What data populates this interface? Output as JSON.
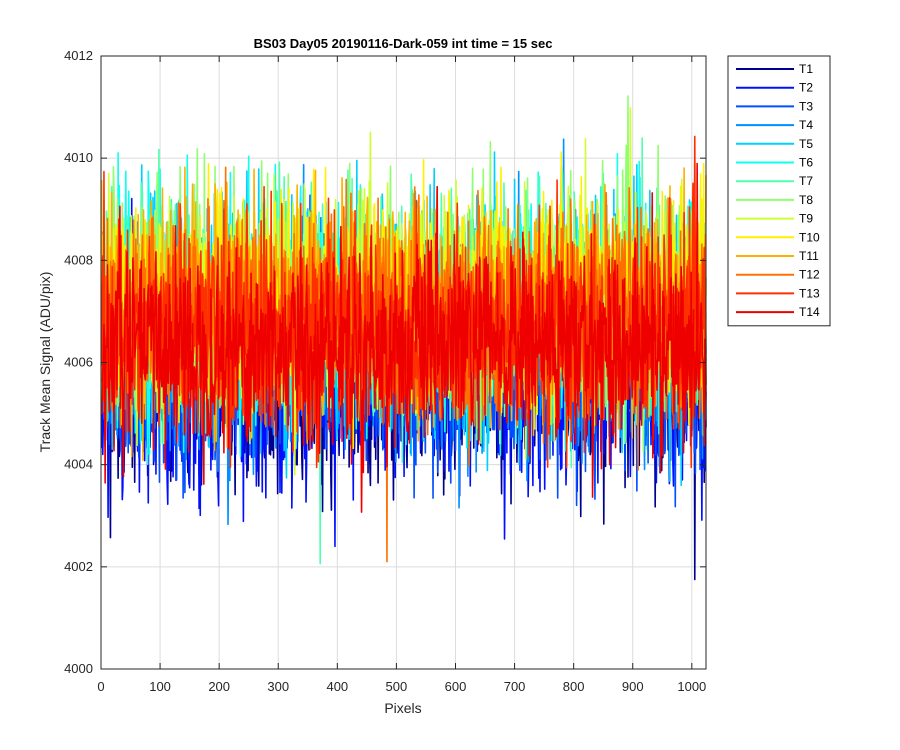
{
  "chart_data": {
    "type": "line",
    "title": "BS03 Day05 20190116-Dark-059 int time = 15 sec",
    "xlabel": "Pixels",
    "ylabel": "Track Mean Signal (ADU/pix)",
    "xlim": [
      0,
      1024
    ],
    "ylim": [
      4000,
      4012
    ],
    "xticks": [
      0,
      100,
      200,
      300,
      400,
      500,
      600,
      700,
      800,
      900,
      1000
    ],
    "yticks": [
      4000,
      4002,
      4004,
      4006,
      4008,
      4010,
      4012
    ],
    "grid": true,
    "legend_position": "outside-top-right",
    "x_points": 1024,
    "series": [
      {
        "name": "T1",
        "color": "#00008f",
        "mean": 4005.6,
        "spread": 1.05
      },
      {
        "name": "T2",
        "color": "#0010ff",
        "mean": 4005.7,
        "spread": 1.05
      },
      {
        "name": "T3",
        "color": "#0050ff",
        "mean": 4006.0,
        "spread": 1.0
      },
      {
        "name": "T4",
        "color": "#0090ff",
        "mean": 4006.4,
        "spread": 1.05
      },
      {
        "name": "T5",
        "color": "#00d0ff",
        "mean": 4006.8,
        "spread": 1.1
      },
      {
        "name": "T6",
        "color": "#10ffef",
        "mean": 4007.0,
        "spread": 1.1
      },
      {
        "name": "T7",
        "color": "#50ffaf",
        "mean": 4007.1,
        "spread": 1.05
      },
      {
        "name": "T8",
        "color": "#8fff70",
        "mean": 4007.2,
        "spread": 1.05
      },
      {
        "name": "T9",
        "color": "#cfff30",
        "mean": 4007.2,
        "spread": 1.0
      },
      {
        "name": "T10",
        "color": "#ffef00",
        "mean": 4007.1,
        "spread": 1.0
      },
      {
        "name": "T11",
        "color": "#ffaf00",
        "mean": 4007.0,
        "spread": 1.0
      },
      {
        "name": "T12",
        "color": "#ff7000",
        "mean": 4006.9,
        "spread": 1.0
      },
      {
        "name": "T13",
        "color": "#ff3000",
        "mean": 4006.6,
        "spread": 1.0
      },
      {
        "name": "T14",
        "color": "#ef0000",
        "mean": 4006.3,
        "spread": 0.95
      }
    ]
  }
}
